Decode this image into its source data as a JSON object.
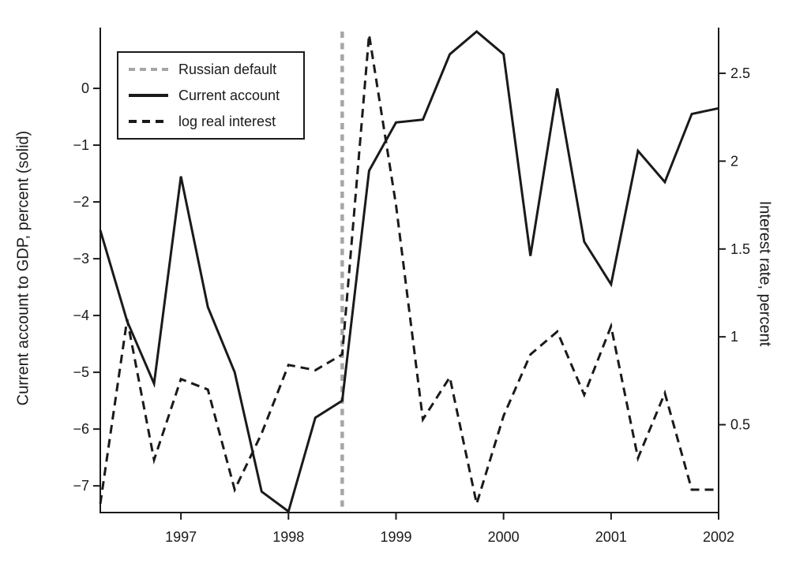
{
  "chart_data": {
    "type": "line",
    "title": "",
    "grid": false,
    "line_color": "#1a1a1a",
    "x_axis": {
      "range": [
        1996.25,
        2002
      ],
      "tick_values": [
        1997,
        1998,
        1999,
        2000,
        2001,
        2002
      ],
      "tick_labels": [
        "1997",
        "1998",
        "1999",
        "2000",
        "2001",
        "2002"
      ]
    },
    "left_axis": {
      "label": "Current account to GDP, percent (solid)",
      "range": [
        -7.47,
        1.07
      ],
      "tick_values": [
        0,
        -1,
        -2,
        -3,
        -4,
        -5,
        -6,
        -7
      ],
      "tick_labels": [
        "0",
        "−1",
        "−2",
        "−3",
        "−4",
        "−5",
        "−6",
        "−7"
      ]
    },
    "right_axis": {
      "label": "Interest rate, percent",
      "range": [
        0,
        2.76
      ],
      "tick_values": [
        2.5,
        2,
        1.5,
        1,
        0.5
      ],
      "tick_labels": [
        "2.5",
        "2",
        "1.5",
        "1",
        "0.5"
      ]
    },
    "annotation": {
      "name": "Russian default",
      "x": 1998.5,
      "color": "#a6a6a6",
      "style": "vertical-dashed"
    },
    "series": [
      {
        "id": "current-account",
        "name": "Current account",
        "axis": "left",
        "style": "solid",
        "color": "#1a1a1a",
        "x": [
          1996.25,
          1996.5,
          1996.75,
          1997.0,
          1997.25,
          1997.5,
          1997.75,
          1998.0,
          1998.25,
          1998.5,
          1998.75,
          1999.0,
          1999.25,
          1999.5,
          1999.75,
          2000.0,
          2000.25,
          2000.5,
          2000.75,
          2001.0,
          2001.25,
          2001.5,
          2001.75,
          2002.0
        ],
        "values": [
          -2.5,
          -4.1,
          -5.2,
          -1.55,
          -3.85,
          -5.0,
          -7.1,
          -7.45,
          -5.8,
          -5.5,
          -1.45,
          -0.6,
          -0.55,
          0.6,
          1.0,
          0.6,
          -2.95,
          0.0,
          -2.7,
          -3.45,
          -1.1,
          -1.65,
          -0.45,
          -0.35
        ]
      },
      {
        "id": "log-real-interest",
        "name": "log real interest",
        "axis": "right",
        "style": "dashed",
        "color": "#1a1a1a",
        "x": [
          1996.25,
          1996.5,
          1996.75,
          1997.0,
          1997.25,
          1997.5,
          1997.75,
          1998.0,
          1998.25,
          1998.5,
          1998.75,
          1999.0,
          1999.25,
          1999.5,
          1999.75,
          2000.0,
          2000.25,
          2000.5,
          2000.75,
          2001.0,
          2001.25,
          2001.5,
          2001.75,
          2002.0
        ],
        "values": [
          0.05,
          1.1,
          0.3,
          0.76,
          0.7,
          0.13,
          0.45,
          0.84,
          0.81,
          0.9,
          2.72,
          1.75,
          0.53,
          0.77,
          0.05,
          0.55,
          0.9,
          1.03,
          0.67,
          1.06,
          0.31,
          0.68,
          0.13,
          0.13
        ]
      }
    ],
    "legend": {
      "position": "top-left",
      "entries": [
        {
          "label": "Russian default"
        },
        {
          "label": "Current account"
        },
        {
          "label": "log real interest"
        }
      ]
    }
  }
}
